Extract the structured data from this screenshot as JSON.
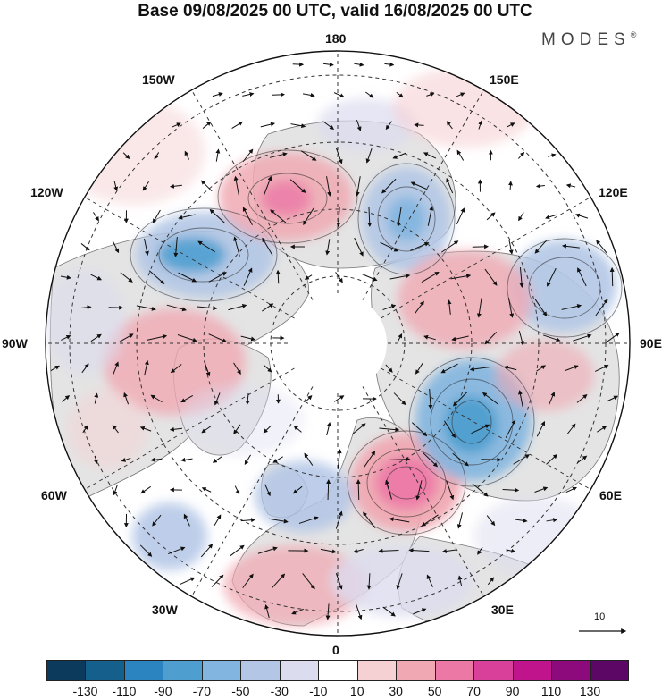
{
  "title": "Base 09/08/2025 00 UTC, valid 16/08/2025 00 UTC",
  "brand": {
    "name": "MODES",
    "mark": "®"
  },
  "longitude_labels": {
    "n180": "180",
    "e150": "150E",
    "e120": "120E",
    "e90": "90E",
    "e60": "60E",
    "e30": "30E",
    "s0": "0",
    "w30": "30W",
    "w60": "60W",
    "w90": "90W",
    "w120": "120W",
    "w150": "150W"
  },
  "colorbar": {
    "levels": [
      "-130",
      "-110",
      "-90",
      "-70",
      "-50",
      "-30",
      "-10",
      "10",
      "30",
      "50",
      "70",
      "90",
      "110",
      "130"
    ],
    "colors": [
      "#0b3a5c",
      "#155f8c",
      "#2b84bf",
      "#4e9fd0",
      "#82b5df",
      "#b3c6e6",
      "#dcdcef",
      "#ffffff",
      "#f6d1d3",
      "#f0a9b3",
      "#ec78a6",
      "#d9409a",
      "#c0148c",
      "#8d0a7d",
      "#5c0766"
    ]
  },
  "reference_vector": {
    "label": "10"
  },
  "colors": {
    "land": "#e4e4e4",
    "coast": "#555555",
    "grid": "#333333"
  }
}
